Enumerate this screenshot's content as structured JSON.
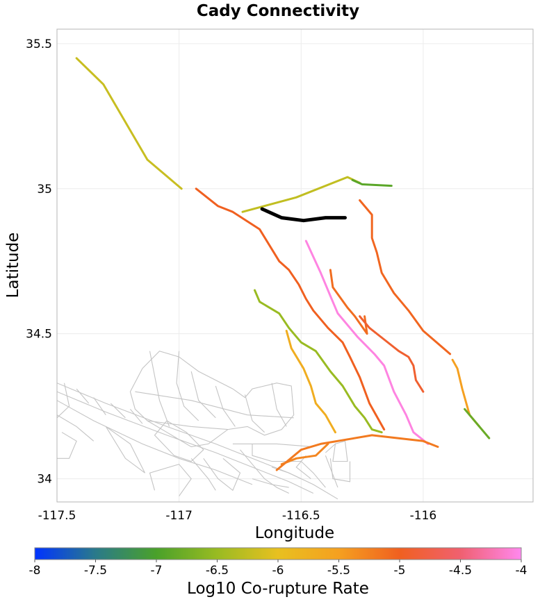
{
  "title": "Cady Connectivity",
  "x_axis": {
    "label": "Longitude",
    "range": [
      -117.5,
      -115.55
    ],
    "ticks": [
      {
        "value": -117.5,
        "label": "-117.5"
      },
      {
        "value": -117.0,
        "label": "-117"
      },
      {
        "value": -116.5,
        "label": "-116.5"
      },
      {
        "value": -116.0,
        "label": "-116"
      }
    ]
  },
  "y_axis": {
    "label": "Latitude",
    "range": [
      33.92,
      35.55
    ],
    "ticks": [
      {
        "value": 35.5,
        "label": "35.5"
      },
      {
        "value": 35.0,
        "label": "35"
      },
      {
        "value": 34.5,
        "label": "34.5"
      },
      {
        "value": 34.0,
        "label": "34"
      }
    ]
  },
  "colorbar": {
    "label": "Log10 Co-rupture Rate",
    "range": [
      -8,
      -4
    ],
    "ticks": [
      "-8",
      "-7.5",
      "-7",
      "-6.5",
      "-6",
      "-5.5",
      "-5",
      "-4.5",
      "-4"
    ],
    "stops": [
      "#0033ff",
      "#2a7a8a",
      "#4aa12a",
      "#99bb22",
      "#e8c020",
      "#f5a020",
      "#f06020",
      "#f06070",
      "#ff88ee"
    ]
  },
  "chart_data": {
    "type": "map",
    "source_fault": {
      "name": "Cady",
      "color": "#000000",
      "path": [
        [
          -116.66,
          34.93
        ],
        [
          -116.58,
          34.9
        ],
        [
          -116.49,
          34.89
        ],
        [
          -116.4,
          34.9
        ],
        [
          -116.32,
          34.9
        ]
      ]
    },
    "fault_traces": [
      {
        "rate": -6.2,
        "path": [
          [
            -117.42,
            35.45
          ],
          [
            -117.31,
            35.36
          ],
          [
            -117.13,
            35.1
          ],
          [
            -116.99,
            35.0
          ]
        ]
      },
      {
        "rate": -6.25,
        "path": [
          [
            -116.74,
            34.92
          ],
          [
            -116.52,
            34.97
          ],
          [
            -116.31,
            35.04
          ],
          [
            -116.26,
            35.02
          ]
        ]
      },
      {
        "rate": -6.9,
        "path": [
          [
            -116.29,
            35.03
          ],
          [
            -116.25,
            35.015
          ],
          [
            -116.13,
            35.01
          ]
        ]
      },
      {
        "rate": -5.0,
        "path": [
          [
            -116.93,
            35.0
          ],
          [
            -116.84,
            34.94
          ],
          [
            -116.78,
            34.92
          ],
          [
            -116.67,
            34.86
          ],
          [
            -116.59,
            34.75
          ],
          [
            -116.55,
            34.72
          ],
          [
            -116.51,
            34.67
          ],
          [
            -116.48,
            34.62
          ],
          [
            -116.45,
            34.58
          ],
          [
            -116.39,
            34.52
          ],
          [
            -116.33,
            34.47
          ],
          [
            -116.3,
            34.42
          ],
          [
            -116.26,
            34.35
          ],
          [
            -116.22,
            34.26
          ],
          [
            -116.16,
            34.17
          ]
        ]
      },
      {
        "rate": -4.05,
        "path": [
          [
            -116.48,
            34.82
          ],
          [
            -116.42,
            34.71
          ],
          [
            -116.38,
            34.63
          ],
          [
            -116.35,
            34.57
          ],
          [
            -116.27,
            34.49
          ],
          [
            -116.2,
            34.43
          ],
          [
            -116.16,
            34.39
          ],
          [
            -116.12,
            34.3
          ],
          [
            -116.07,
            34.22
          ],
          [
            -116.04,
            34.16
          ],
          [
            -115.98,
            34.12
          ]
        ]
      },
      {
        "rate": -5.1,
        "path": [
          [
            -116.38,
            34.72
          ],
          [
            -116.37,
            34.66
          ],
          [
            -116.31,
            34.59
          ],
          [
            -116.28,
            34.56
          ],
          [
            -116.23,
            34.5
          ],
          [
            -116.24,
            34.56
          ]
        ]
      },
      {
        "rate": -4.9,
        "path": [
          [
            -116.26,
            34.56
          ],
          [
            -116.22,
            34.52
          ],
          [
            -116.16,
            34.48
          ],
          [
            -116.1,
            34.44
          ],
          [
            -116.06,
            34.42
          ],
          [
            -116.04,
            34.39
          ],
          [
            -116.03,
            34.34
          ],
          [
            -116.0,
            34.3
          ]
        ]
      },
      {
        "rate": -5.05,
        "path": [
          [
            -116.26,
            34.96
          ],
          [
            -116.21,
            34.91
          ],
          [
            -116.21,
            34.83
          ],
          [
            -116.19,
            34.78
          ],
          [
            -116.17,
            34.71
          ],
          [
            -116.12,
            34.64
          ],
          [
            -116.06,
            34.58
          ],
          [
            -116.0,
            34.51
          ],
          [
            -115.89,
            34.43
          ]
        ]
      },
      {
        "rate": -5.5,
        "path": [
          [
            -115.88,
            34.41
          ],
          [
            -115.86,
            34.38
          ],
          [
            -115.84,
            34.31
          ],
          [
            -115.81,
            34.22
          ],
          [
            -115.77,
            34.18
          ]
        ]
      },
      {
        "rate": -6.5,
        "path": [
          [
            -116.69,
            34.65
          ],
          [
            -116.67,
            34.61
          ],
          [
            -116.59,
            34.57
          ],
          [
            -116.55,
            34.52
          ],
          [
            -116.5,
            34.47
          ],
          [
            -116.44,
            34.44
          ],
          [
            -116.38,
            34.37
          ],
          [
            -116.33,
            34.32
          ],
          [
            -116.28,
            34.25
          ],
          [
            -116.24,
            34.21
          ],
          [
            -116.21,
            34.17
          ],
          [
            -116.17,
            34.16
          ]
        ]
      },
      {
        "rate": -5.7,
        "path": [
          [
            -116.56,
            34.51
          ],
          [
            -116.54,
            34.45
          ],
          [
            -116.49,
            34.38
          ],
          [
            -116.46,
            34.32
          ],
          [
            -116.44,
            34.26
          ],
          [
            -116.4,
            34.22
          ],
          [
            -116.38,
            34.19
          ],
          [
            -116.36,
            34.16
          ]
        ]
      },
      {
        "rate": -6.8,
        "path": [
          [
            -115.83,
            34.24
          ],
          [
            -115.73,
            34.14
          ]
        ]
      },
      {
        "rate": -5.3,
        "path": [
          [
            -116.58,
            34.05
          ],
          [
            -116.52,
            34.07
          ],
          [
            -116.44,
            34.08
          ],
          [
            -116.39,
            34.12
          ]
        ]
      },
      {
        "rate": -5.2,
        "path": [
          [
            -116.6,
            34.03
          ],
          [
            -116.5,
            34.1
          ],
          [
            -116.42,
            34.12
          ],
          [
            -116.21,
            34.15
          ],
          [
            -116.0,
            34.13
          ],
          [
            -115.94,
            34.11
          ]
        ]
      }
    ],
    "basemap_roads": [
      [
        [
          -117.5,
          34.33
        ],
        [
          -117.3,
          34.26
        ],
        [
          -117.05,
          34.18
        ],
        [
          -116.85,
          34.12
        ],
        [
          -116.7,
          34.07
        ],
        [
          -116.55,
          34.02
        ],
        [
          -116.45,
          33.98
        ],
        [
          -116.35,
          33.93
        ]
      ],
      [
        [
          -117.5,
          34.3
        ],
        [
          -117.3,
          34.23
        ],
        [
          -117.05,
          34.15
        ],
        [
          -116.85,
          34.09
        ],
        [
          -116.7,
          34.04
        ],
        [
          -116.55,
          33.99
        ],
        [
          -116.45,
          33.95
        ]
      ],
      [
        [
          -117.5,
          34.27
        ],
        [
          -117.35,
          34.2
        ],
        [
          -117.15,
          34.12
        ],
        [
          -117.0,
          34.07
        ],
        [
          -116.85,
          34.03
        ],
        [
          -116.7,
          33.98
        ]
      ],
      [
        [
          -117.5,
          34.22
        ],
        [
          -117.42,
          34.18
        ],
        [
          -117.35,
          34.13
        ]
      ],
      [
        [
          -117.47,
          34.33
        ],
        [
          -117.45,
          34.25
        ],
        [
          -117.5,
          34.21
        ]
      ],
      [
        [
          -117.42,
          34.31
        ],
        [
          -117.37,
          34.26
        ]
      ],
      [
        [
          -117.35,
          34.28
        ],
        [
          -117.3,
          34.22
        ]
      ],
      [
        [
          -117.28,
          34.26
        ],
        [
          -117.22,
          34.21
        ]
      ],
      [
        [
          -117.2,
          34.24
        ],
        [
          -117.15,
          34.19
        ]
      ],
      [
        [
          -117.05,
          34.2
        ],
        [
          -117.1,
          34.15
        ],
        [
          -117.02,
          34.08
        ],
        [
          -116.95,
          34.06
        ],
        [
          -116.9,
          34.1
        ],
        [
          -116.97,
          34.16
        ],
        [
          -117.05,
          34.2
        ]
      ],
      [
        [
          -117.3,
          34.18
        ],
        [
          -117.2,
          34.12
        ],
        [
          -117.14,
          34.02
        ],
        [
          -117.22,
          34.07
        ],
        [
          -117.3,
          34.18
        ]
      ],
      [
        [
          -117.48,
          34.16
        ],
        [
          -117.42,
          34.13
        ],
        [
          -117.45,
          34.07
        ],
        [
          -117.5,
          34.07
        ]
      ],
      [
        [
          -117.15,
          34.38
        ],
        [
          -117.08,
          34.44
        ],
        [
          -117.0,
          34.42
        ],
        [
          -116.92,
          34.37
        ],
        [
          -116.78,
          34.31
        ],
        [
          -116.73,
          34.28
        ],
        [
          -116.7,
          34.31
        ],
        [
          -116.6,
          34.33
        ],
        [
          -116.54,
          34.32
        ],
        [
          -116.53,
          34.22
        ],
        [
          -116.58,
          34.17
        ],
        [
          -116.65,
          34.15
        ],
        [
          -116.72,
          34.18
        ],
        [
          -116.8,
          34.17
        ],
        [
          -116.88,
          34.12
        ],
        [
          -116.95,
          34.11
        ],
        [
          -117.05,
          34.16
        ],
        [
          -117.13,
          34.2
        ],
        [
          -117.18,
          34.24
        ],
        [
          -117.2,
          34.3
        ],
        [
          -117.15,
          34.38
        ]
      ],
      [
        [
          -117.12,
          34.44
        ],
        [
          -117.08,
          34.27
        ],
        [
          -117.04,
          34.18
        ]
      ],
      [
        [
          -117.0,
          34.44
        ],
        [
          -117.01,
          34.33
        ],
        [
          -116.98,
          34.25
        ],
        [
          -116.92,
          34.2
        ]
      ],
      [
        [
          -116.95,
          34.37
        ],
        [
          -116.92,
          34.27
        ],
        [
          -116.85,
          34.21
        ]
      ],
      [
        [
          -116.85,
          34.32
        ],
        [
          -116.82,
          34.24
        ],
        [
          -116.77,
          34.18
        ]
      ],
      [
        [
          -116.73,
          34.29
        ],
        [
          -116.7,
          34.2
        ],
        [
          -116.65,
          34.16
        ]
      ],
      [
        [
          -116.62,
          34.33
        ],
        [
          -116.6,
          34.24
        ],
        [
          -116.56,
          34.18
        ]
      ],
      [
        [
          -117.18,
          34.3
        ],
        [
          -116.95,
          34.27
        ],
        [
          -116.72,
          34.22
        ],
        [
          -116.53,
          34.21
        ]
      ],
      [
        [
          -117.13,
          34.2
        ],
        [
          -116.95,
          34.18
        ],
        [
          -116.8,
          34.17
        ]
      ],
      [
        [
          -117.1,
          33.96
        ],
        [
          -117.12,
          34.02
        ],
        [
          -117.0,
          34.05
        ],
        [
          -116.95,
          34.0
        ],
        [
          -117.0,
          33.94
        ]
      ],
      [
        [
          -116.95,
          34.07
        ],
        [
          -116.88,
          34.0
        ],
        [
          -116.85,
          33.96
        ]
      ],
      [
        [
          -116.9,
          34.07
        ],
        [
          -116.84,
          34.0
        ],
        [
          -116.78,
          33.96
        ],
        [
          -116.75,
          34.02
        ],
        [
          -116.82,
          34.07
        ]
      ],
      [
        [
          -116.75,
          34.1
        ],
        [
          -116.7,
          34.05
        ],
        [
          -116.65,
          34.0
        ],
        [
          -116.6,
          33.97
        ],
        [
          -116.55,
          33.95
        ]
      ],
      [
        [
          -116.78,
          34.12
        ],
        [
          -116.6,
          34.12
        ],
        [
          -116.45,
          34.11
        ]
      ],
      [
        [
          -116.7,
          34.12
        ],
        [
          -116.7,
          34.08
        ],
        [
          -116.62,
          34.06
        ],
        [
          -116.5,
          34.06
        ],
        [
          -116.45,
          34.02
        ],
        [
          -116.4,
          33.97
        ]
      ],
      [
        [
          -116.62,
          34.04
        ],
        [
          -116.55,
          34.02
        ],
        [
          -116.5,
          34.0
        ]
      ],
      [
        [
          -116.7,
          34.0
        ],
        [
          -116.62,
          33.98
        ],
        [
          -116.55,
          33.97
        ]
      ],
      [
        [
          -116.48,
          34.08
        ],
        [
          -116.52,
          34.04
        ],
        [
          -116.46,
          34.0
        ]
      ],
      [
        [
          -116.4,
          34.09
        ],
        [
          -116.36,
          34.12
        ],
        [
          -116.37,
          34.06
        ],
        [
          -116.31,
          34.06
        ],
        [
          -116.32,
          34.13
        ],
        [
          -116.36,
          34.12
        ]
      ],
      [
        [
          -116.38,
          34.07
        ],
        [
          -116.37,
          34.0
        ],
        [
          -116.3,
          33.99
        ],
        [
          -116.3,
          34.06
        ]
      ],
      [
        [
          -116.4,
          34.08
        ],
        [
          -116.35,
          33.97
        ]
      ]
    ]
  }
}
